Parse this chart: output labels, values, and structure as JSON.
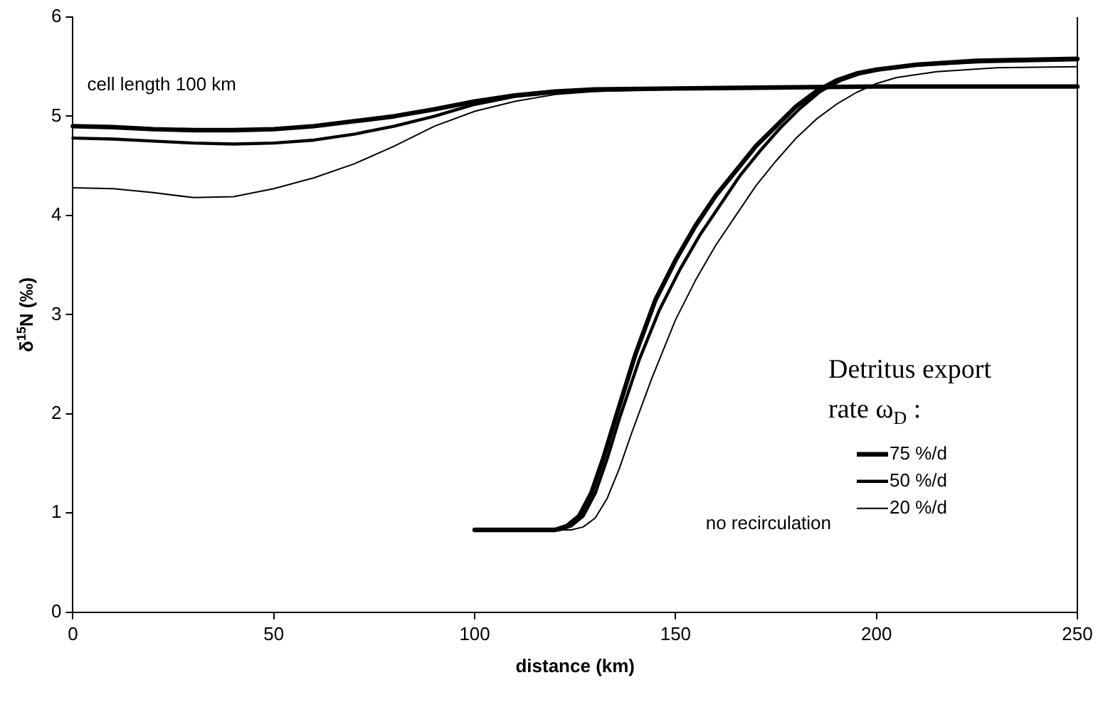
{
  "chart_data": {
    "type": "line",
    "xlabel": "distance (km)",
    "ylabel": "δ$^{15}$N (‰)",
    "legend_title": "Detritus export rate ω$_{D}$ :",
    "legend": "bottom right",
    "grid": false,
    "marker": "none",
    "line_style": "solid",
    "xlim": [
      0,
      250
    ],
    "xticks": [
      0,
      50,
      100,
      150,
      200,
      250
    ],
    "ylim": [
      0,
      6
    ],
    "yticks": [
      0,
      1,
      2,
      3,
      4,
      5,
      6
    ],
    "annotations": [
      "cell length 100 km",
      "no recirculation"
    ],
    "series": [
      {
        "name": "75 %/d",
        "color": "#000000",
        "x": [
          0,
          10,
          20,
          30,
          40,
          50,
          60,
          70,
          80,
          90,
          100,
          110,
          120,
          130,
          150,
          175,
          200,
          250
        ],
        "values": [
          4.9,
          4.89,
          4.87,
          4.86,
          4.86,
          4.87,
          4.9,
          4.95,
          5.0,
          5.07,
          5.15,
          5.21,
          5.25,
          5.27,
          5.28,
          5.29,
          5.3,
          5.3
        ]
      },
      {
        "name": "50 %/d",
        "color": "#000000",
        "x": [
          0,
          10,
          20,
          30,
          40,
          50,
          60,
          70,
          80,
          90,
          100,
          110,
          120,
          130,
          150,
          175,
          200,
          250
        ],
        "values": [
          4.78,
          4.77,
          4.75,
          4.73,
          4.72,
          4.73,
          4.76,
          4.82,
          4.9,
          5.0,
          5.12,
          5.2,
          5.24,
          5.26,
          5.28,
          5.29,
          5.3,
          5.3
        ]
      },
      {
        "name": "20 %/d",
        "color": "#000000",
        "x": [
          0,
          10,
          20,
          30,
          40,
          50,
          60,
          70,
          80,
          90,
          100,
          110,
          120,
          130,
          150,
          175,
          200,
          250
        ],
        "values": [
          4.28,
          4.27,
          4.23,
          4.18,
          4.19,
          4.27,
          4.38,
          4.52,
          4.7,
          4.9,
          5.05,
          5.15,
          5.22,
          5.25,
          5.28,
          5.29,
          5.3,
          5.3
        ]
      },
      {
        "color": "#000000",
        "x": [
          100,
          120,
          123,
          126,
          129,
          132,
          135,
          140,
          145,
          150,
          155,
          160,
          165,
          170,
          175,
          180,
          185,
          190,
          195,
          200,
          210,
          225,
          250
        ],
        "values": [
          0.83,
          0.83,
          0.87,
          0.97,
          1.2,
          1.55,
          1.95,
          2.6,
          3.15,
          3.55,
          3.9,
          4.2,
          4.45,
          4.7,
          4.9,
          5.1,
          5.25,
          5.36,
          5.43,
          5.47,
          5.52,
          5.56,
          5.58
        ]
      },
      {
        "color": "#000000",
        "x": [
          100,
          121,
          124,
          127,
          130,
          133,
          136,
          141,
          146,
          151,
          156,
          161,
          166,
          171,
          176,
          181,
          186,
          191,
          196,
          201,
          211,
          226,
          250
        ],
        "values": [
          0.83,
          0.83,
          0.87,
          0.97,
          1.2,
          1.55,
          1.95,
          2.55,
          3.05,
          3.45,
          3.8,
          4.1,
          4.4,
          4.65,
          4.88,
          5.08,
          5.25,
          5.36,
          5.43,
          5.47,
          5.52,
          5.55,
          5.57
        ]
      },
      {
        "color": "#000000",
        "x": [
          100,
          124,
          127,
          130,
          133,
          136,
          139,
          144,
          150,
          155,
          160,
          165,
          170,
          175,
          180,
          185,
          190,
          195,
          200,
          205,
          215,
          230,
          250
        ],
        "values": [
          0.83,
          0.83,
          0.86,
          0.95,
          1.15,
          1.45,
          1.8,
          2.35,
          2.95,
          3.35,
          3.7,
          4.0,
          4.3,
          4.55,
          4.78,
          4.97,
          5.12,
          5.24,
          5.33,
          5.39,
          5.45,
          5.49,
          5.5
        ]
      }
    ]
  }
}
